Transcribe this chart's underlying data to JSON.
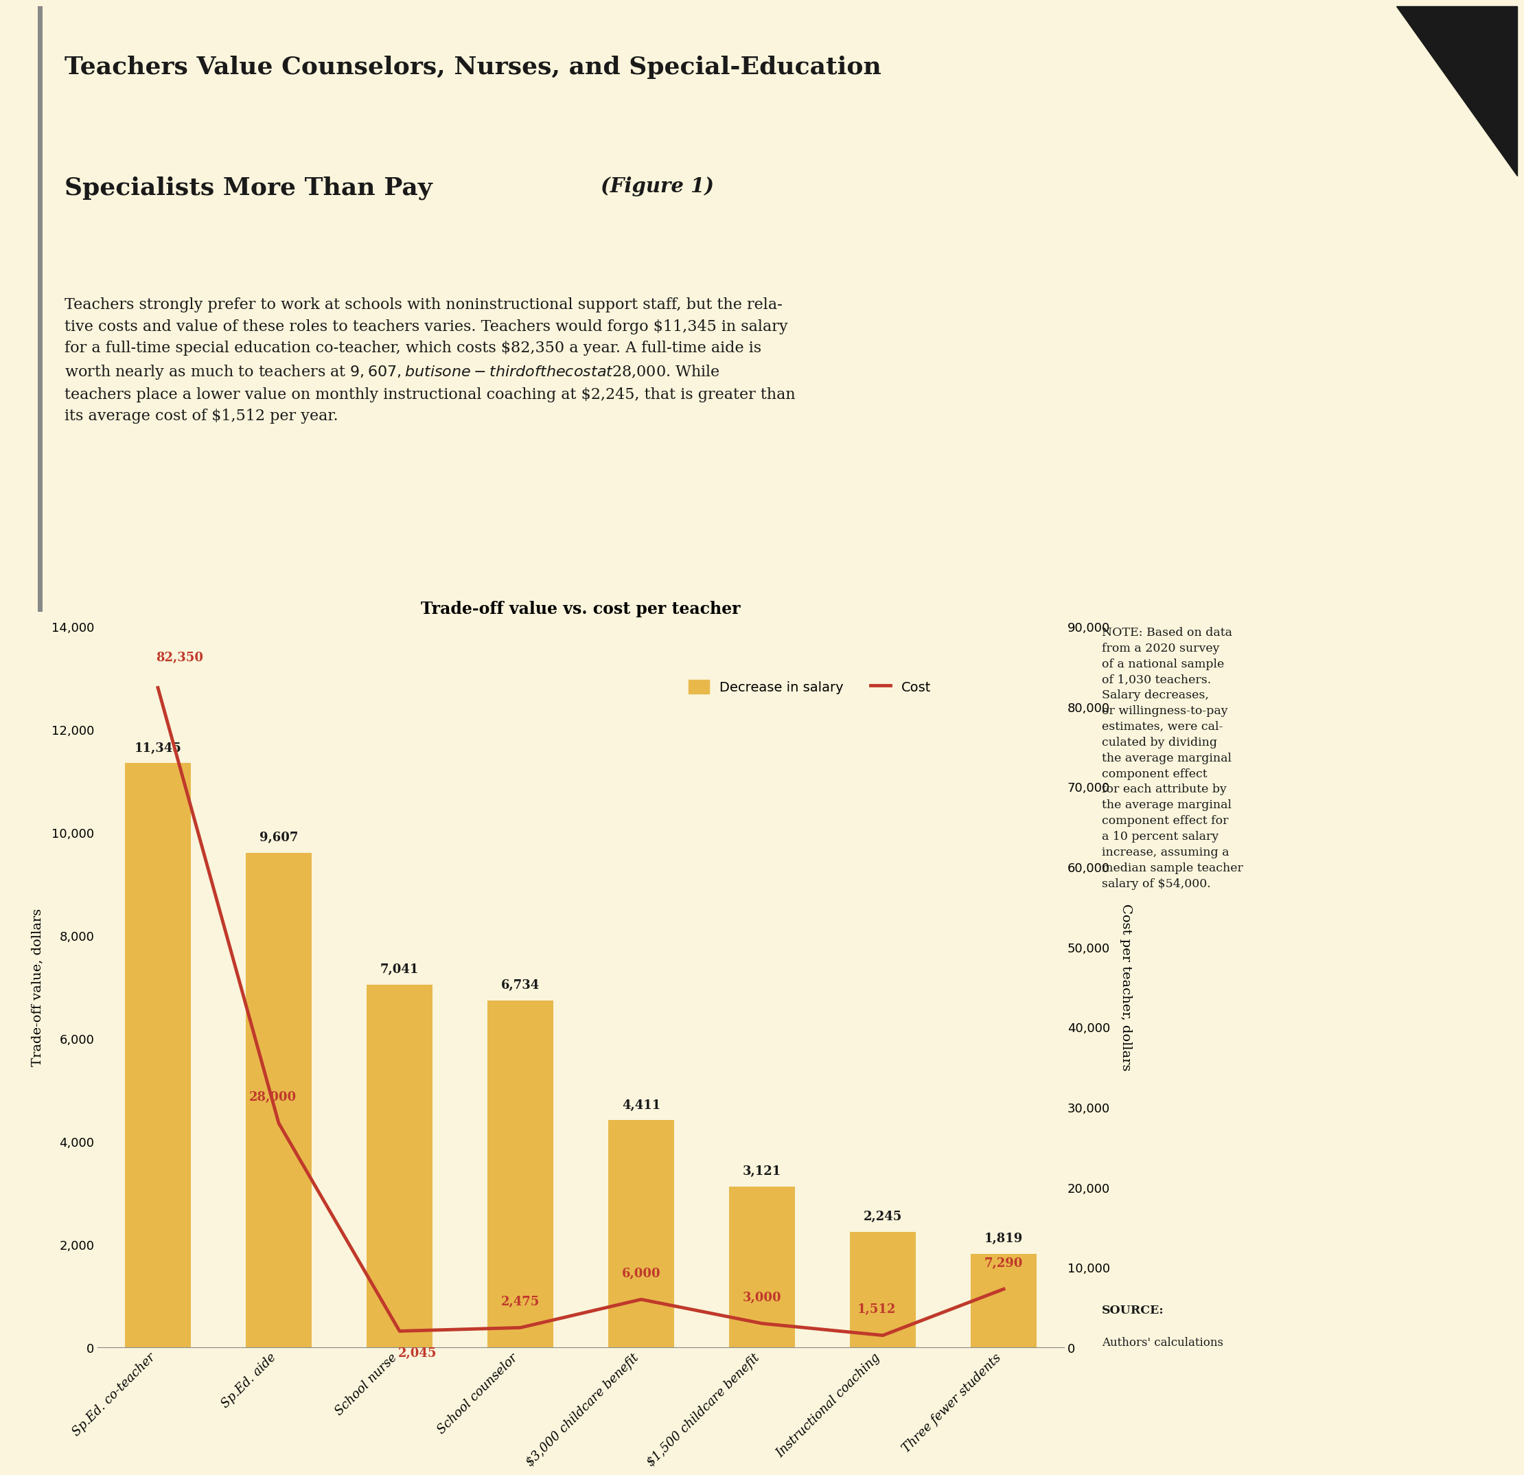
{
  "chart_title": "Trade-off value vs. cost per teacher",
  "categories": [
    "Sp.Ed. co-teacher",
    "Sp.Ed. aide",
    "School nurse",
    "School counselor",
    "$3,000 childcare benefit",
    "$1,500 childcare benefit",
    "Instructional coaching",
    "Three fewer students"
  ],
  "bar_values": [
    11345,
    9607,
    7041,
    6734,
    4411,
    3121,
    2245,
    1819
  ],
  "line_values": [
    82350,
    28000,
    2045,
    2475,
    6000,
    3000,
    1512,
    7290
  ],
  "bar_labels": [
    "11,345",
    "9,607",
    "7,041",
    "6,734",
    "4,411",
    "3,121",
    "2,245",
    "1,819"
  ],
  "line_labels": [
    "82,350",
    "28,000",
    "2,045",
    "2,475",
    "6,000",
    "3,000",
    "1,512",
    "7,290"
  ],
  "bar_color": "#E8B84B",
  "line_color": "#C0392B",
  "background_top": "#D4D9C4",
  "background_bottom": "#FAF5DC",
  "left_ylim": [
    0,
    14000
  ],
  "right_ylim": [
    0,
    90000
  ],
  "left_yticks": [
    0,
    2000,
    4000,
    6000,
    8000,
    10000,
    12000,
    14000
  ],
  "right_yticks": [
    0,
    10000,
    20000,
    30000,
    40000,
    50000,
    60000,
    70000,
    80000,
    90000
  ],
  "ylabel_left": "Trade-off value, dollars",
  "ylabel_right": "Cost per teacher, dollars",
  "title_line1": "Teachers Value Counselors, Nurses, and Special-Education",
  "title_line2": "Specialists More Than Pay",
  "title_figure": "(Figure 1)",
  "subtitle_lines": [
    "Teachers strongly prefer to work at schools with noninstructional support staff, but the rela-",
    "tive costs and value of these roles to teachers varies. Teachers would forgo $11,345 in salary",
    "for a full-time special education co-teacher, which costs $82,350 a year. A full-time aide is",
    "worth nearly as much to teachers at $9,607, but is one-third of the cost at $28,000. While",
    "teachers place a lower value on monthly instructional coaching at $2,245, that is greater than",
    "its average cost of $1,512 per year."
  ],
  "note_lines": [
    "NOTE: Based on data",
    "from a 2020 survey",
    "of a national sample",
    "of 1,030 teachers.",
    "Salary decreases,",
    "or willingness-to-pay",
    "estimates, were cal-",
    "culated by dividing",
    "the average marginal",
    "component effect",
    "for each attribute by",
    "the average marginal",
    "component effect for",
    "a 10 percent salary",
    "increase, assuming a",
    "median sample teacher",
    "salary of $54,000."
  ],
  "source_label": "SOURCE:",
  "source_text": "Authors' calculations"
}
